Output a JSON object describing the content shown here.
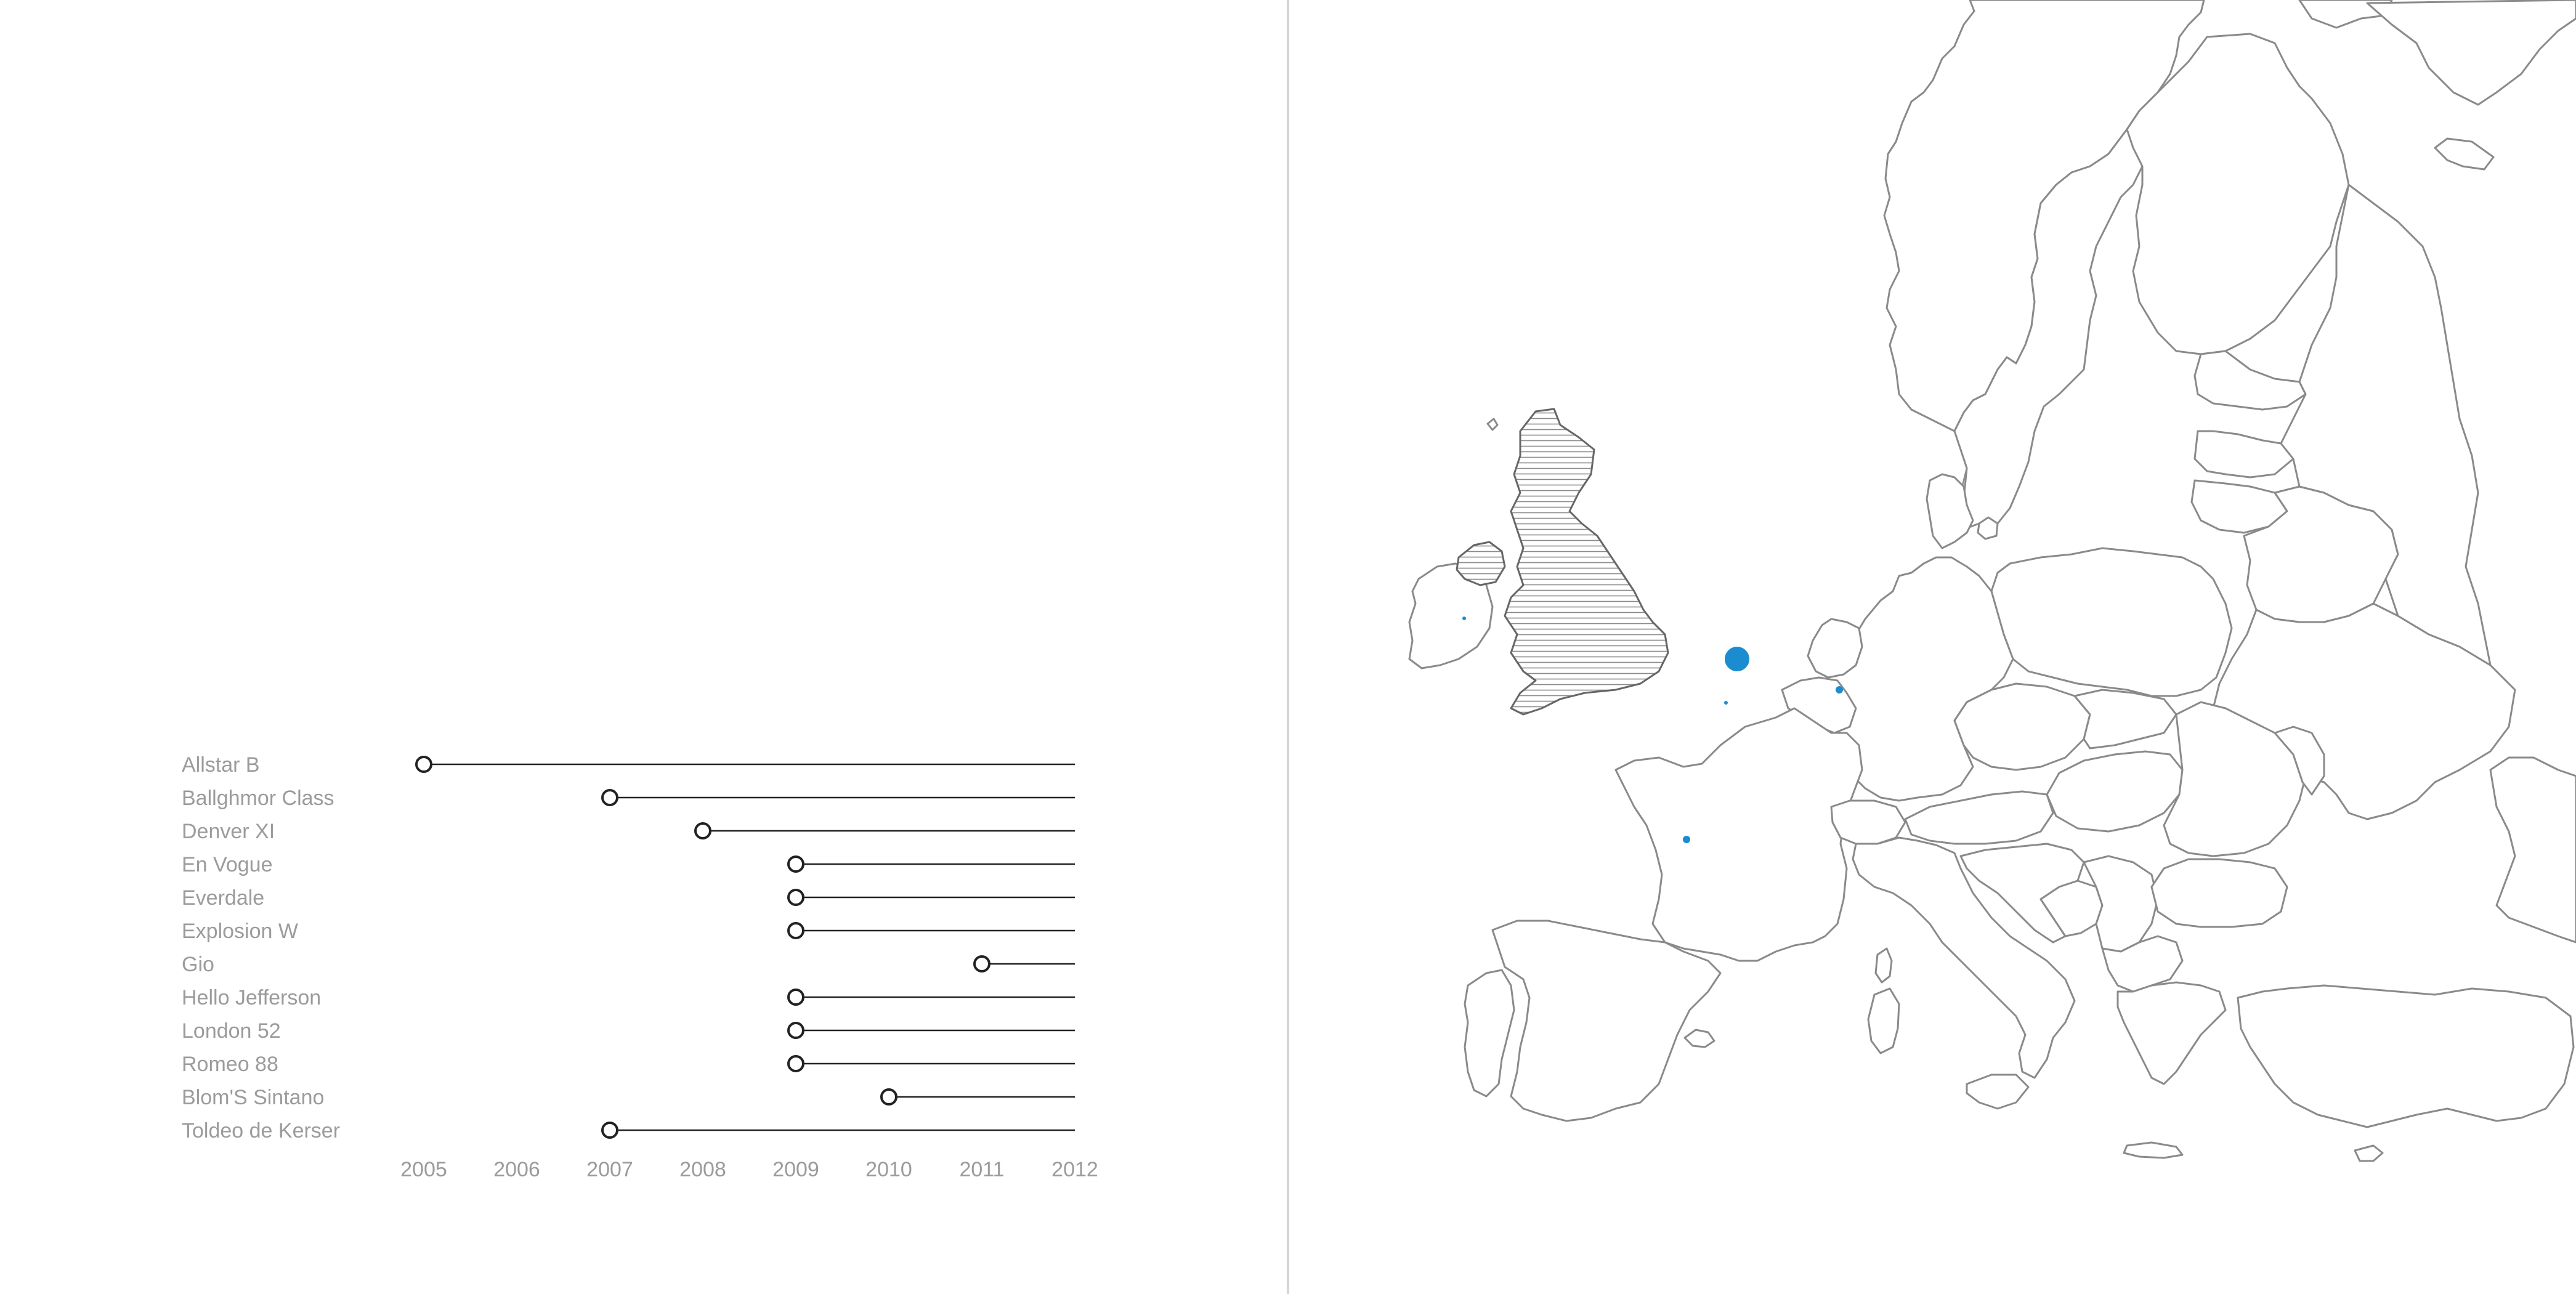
{
  "chart_data": {
    "type": "timeline",
    "x_ticks": [
      "2005",
      "2006",
      "2007",
      "2008",
      "2009",
      "2010",
      "2011",
      "2012"
    ],
    "xlim": [
      2005,
      2012
    ],
    "rows": [
      {
        "label": "Allstar B",
        "start": 2005.0
      },
      {
        "label": "Ballghmor Class",
        "start": 2007.0
      },
      {
        "label": "Denver XI",
        "start": 2008.0
      },
      {
        "label": "En Vogue",
        "start": 2009.0
      },
      {
        "label": "Everdale",
        "start": 2009.0
      },
      {
        "label": "Explosion W",
        "start": 2009.0
      },
      {
        "label": "Gio",
        "start": 2011.0
      },
      {
        "label": "Hello Jefferson",
        "start": 2009.0
      },
      {
        "label": "London 52",
        "start": 2009.0
      },
      {
        "label": "Romeo 88",
        "start": 2009.0
      },
      {
        "label": "Blom'S Sintano",
        "start": 2010.0
      },
      {
        "label": "Toldeo de Kerser",
        "start": 2007.0
      }
    ],
    "end": 2012
  },
  "map": {
    "highlight_color": "#1a8ccf",
    "hatched_regions": [
      "United Kingdom",
      "Northern Ireland"
    ],
    "markers": [
      {
        "location": "Netherlands",
        "size": "large"
      },
      {
        "location": "Germany",
        "size": "small"
      },
      {
        "location": "France",
        "size": "small"
      },
      {
        "location": "Belgium",
        "size": "tiny"
      },
      {
        "location": "Ireland",
        "size": "tiny"
      }
    ]
  }
}
